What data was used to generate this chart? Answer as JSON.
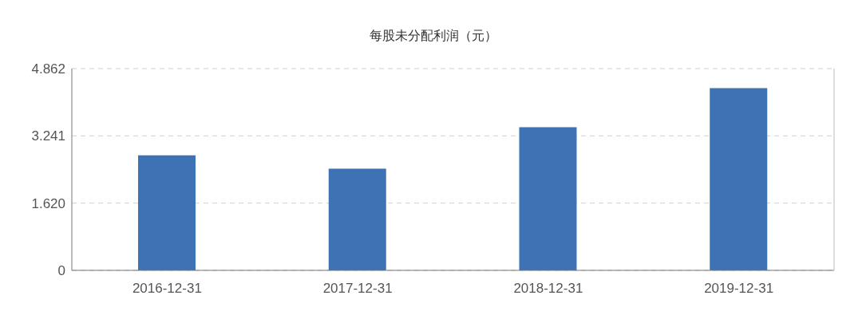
{
  "chart_data": {
    "type": "bar",
    "title": "每股未分配利润（元）",
    "categories": [
      "2016-12-31",
      "2017-12-31",
      "2018-12-31",
      "2019-12-31"
    ],
    "values": [
      2.77,
      2.45,
      3.45,
      4.39
    ],
    "color": "#3d72b4",
    "ylim": [
      0,
      4.862
    ],
    "yticks": [
      0,
      {
        "value": 1.62,
        "label": "1.620"
      },
      3.241,
      4.862
    ],
    "grid": "y"
  }
}
